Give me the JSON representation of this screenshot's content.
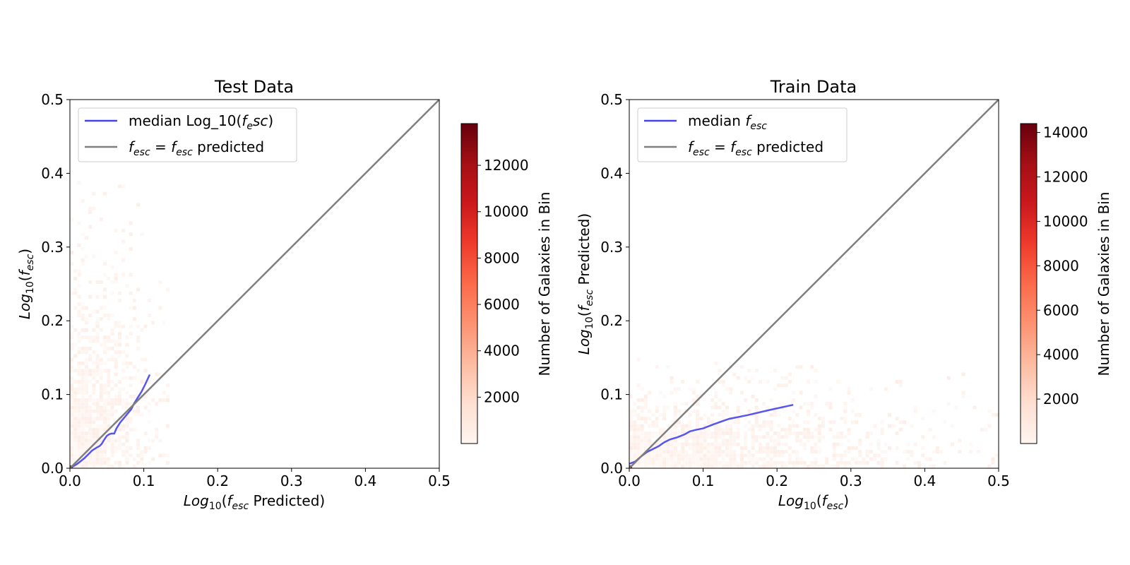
{
  "chart_data": [
    {
      "type": "heatmap",
      "title": "Test Data",
      "xlabel": {
        "base": "Log",
        "sub": "10",
        "open": "(",
        "f": "f",
        "fsub": "esc",
        "suffix": " Predicted)"
      },
      "ylabel": {
        "base": "Log",
        "sub": "10",
        "open": "(",
        "f": "f",
        "fsub": "esc",
        "suffix": ")"
      },
      "xlim": [
        0.0,
        0.5
      ],
      "ylim": [
        0.0,
        0.5
      ],
      "xticks": [
        "0.0",
        "0.1",
        "0.2",
        "0.3",
        "0.4",
        "0.5"
      ],
      "yticks": [
        "0.0",
        "0.1",
        "0.2",
        "0.3",
        "0.4",
        "0.5"
      ],
      "legend_position": "top-left",
      "legend": {
        "median": {
          "text": "median Log_10(",
          "f": "f",
          "fsub": "e",
          "rest": "sc",
          "close": ")"
        },
        "identity": {
          "f1": "f",
          "s1": "esc",
          "eq": " = ",
          "f2": "f",
          "s2": "esc",
          "tail": " predicted"
        }
      },
      "series": [
        {
          "kind": "median",
          "color": "#4444ee",
          "x": [
            0.0,
            0.005,
            0.01,
            0.015,
            0.02,
            0.024,
            0.027,
            0.03,
            0.033,
            0.036,
            0.04,
            0.043,
            0.046,
            0.05,
            0.053,
            0.056,
            0.06,
            0.063,
            0.068,
            0.073,
            0.078,
            0.083,
            0.087,
            0.092,
            0.097,
            0.102,
            0.108
          ],
          "y": [
            0.0,
            0.003,
            0.006,
            0.01,
            0.014,
            0.018,
            0.021,
            0.024,
            0.026,
            0.028,
            0.03,
            0.033,
            0.038,
            0.044,
            0.046,
            0.047,
            0.047,
            0.054,
            0.062,
            0.068,
            0.074,
            0.08,
            0.088,
            0.096,
            0.104,
            0.114,
            0.127
          ]
        },
        {
          "kind": "identity",
          "color": "#7f7f7f",
          "x": [
            0.0,
            0.5
          ],
          "y": [
            0.0,
            0.5
          ]
        }
      ],
      "density": {
        "description": "concentrated near origin along x<0.14",
        "x_extent": [
          0.0,
          0.14
        ],
        "y_extent": [
          0.0,
          0.42
        ]
      },
      "colorbar": {
        "label": "Number of Galaxies in Bin",
        "min": 0,
        "max": 13800,
        "ticks": [
          "2000",
          "4000",
          "6000",
          "8000",
          "10000",
          "12000"
        ],
        "tick_values": [
          2000,
          4000,
          6000,
          8000,
          10000,
          12000
        ],
        "colors": [
          "#fff5f0",
          "#fee0d2",
          "#fcbba1",
          "#fc9272",
          "#fb6a4a",
          "#ef3b2c",
          "#cb181d",
          "#a50f15",
          "#67000d"
        ]
      }
    },
    {
      "type": "heatmap",
      "title": "Train Data",
      "xlabel": {
        "base": "Log",
        "sub": "10",
        "open": "(",
        "f": "f",
        "fsub": "esc",
        "suffix": ")"
      },
      "ylabel": {
        "base": "Log",
        "sub": "10",
        "open": "(",
        "f": "f",
        "fsub": "esc",
        "suffix": " Predicted)"
      },
      "xlim": [
        0.0,
        0.5
      ],
      "ylim": [
        0.0,
        0.5
      ],
      "xticks": [
        "0.0",
        "0.1",
        "0.2",
        "0.3",
        "0.4",
        "0.5"
      ],
      "yticks": [
        "0.0",
        "0.1",
        "0.2",
        "0.3",
        "0.4",
        "0.5"
      ],
      "legend_position": "top-left",
      "legend": {
        "median": {
          "text": "median ",
          "f": "f",
          "fsub": "esc",
          "rest": "",
          "close": ""
        },
        "identity": {
          "f1": "f",
          "s1": "esc",
          "eq": " = ",
          "f2": "f",
          "s2": "esc",
          "tail": " predicted"
        }
      },
      "series": [
        {
          "kind": "median",
          "color": "#4444ee",
          "x": [
            0.0,
            0.008,
            0.016,
            0.024,
            0.03,
            0.034,
            0.04,
            0.047,
            0.055,
            0.065,
            0.075,
            0.082,
            0.09,
            0.1,
            0.115,
            0.135,
            0.16,
            0.19,
            0.222
          ],
          "y": [
            0.006,
            0.009,
            0.016,
            0.022,
            0.025,
            0.027,
            0.03,
            0.035,
            0.039,
            0.042,
            0.046,
            0.05,
            0.052,
            0.054,
            0.06,
            0.067,
            0.072,
            0.079,
            0.086
          ]
        },
        {
          "kind": "identity",
          "color": "#7f7f7f",
          "x": [
            0.0,
            0.5
          ],
          "y": [
            0.0,
            0.5
          ]
        }
      ],
      "density": {
        "description": "spread along x up to 0.5, y below 0.15",
        "x_extent": [
          0.0,
          0.5
        ],
        "y_extent": [
          0.0,
          0.15
        ]
      },
      "colorbar": {
        "label": "Number of Galaxies in Bin",
        "min": 0,
        "max": 14400,
        "ticks": [
          "2000",
          "4000",
          "6000",
          "8000",
          "10000",
          "12000",
          "14000"
        ],
        "tick_values": [
          2000,
          4000,
          6000,
          8000,
          10000,
          12000,
          14000
        ],
        "colors": [
          "#fff5f0",
          "#fee0d2",
          "#fcbba1",
          "#fc9272",
          "#fb6a4a",
          "#ef3b2c",
          "#cb181d",
          "#a50f15",
          "#67000d"
        ]
      }
    }
  ]
}
